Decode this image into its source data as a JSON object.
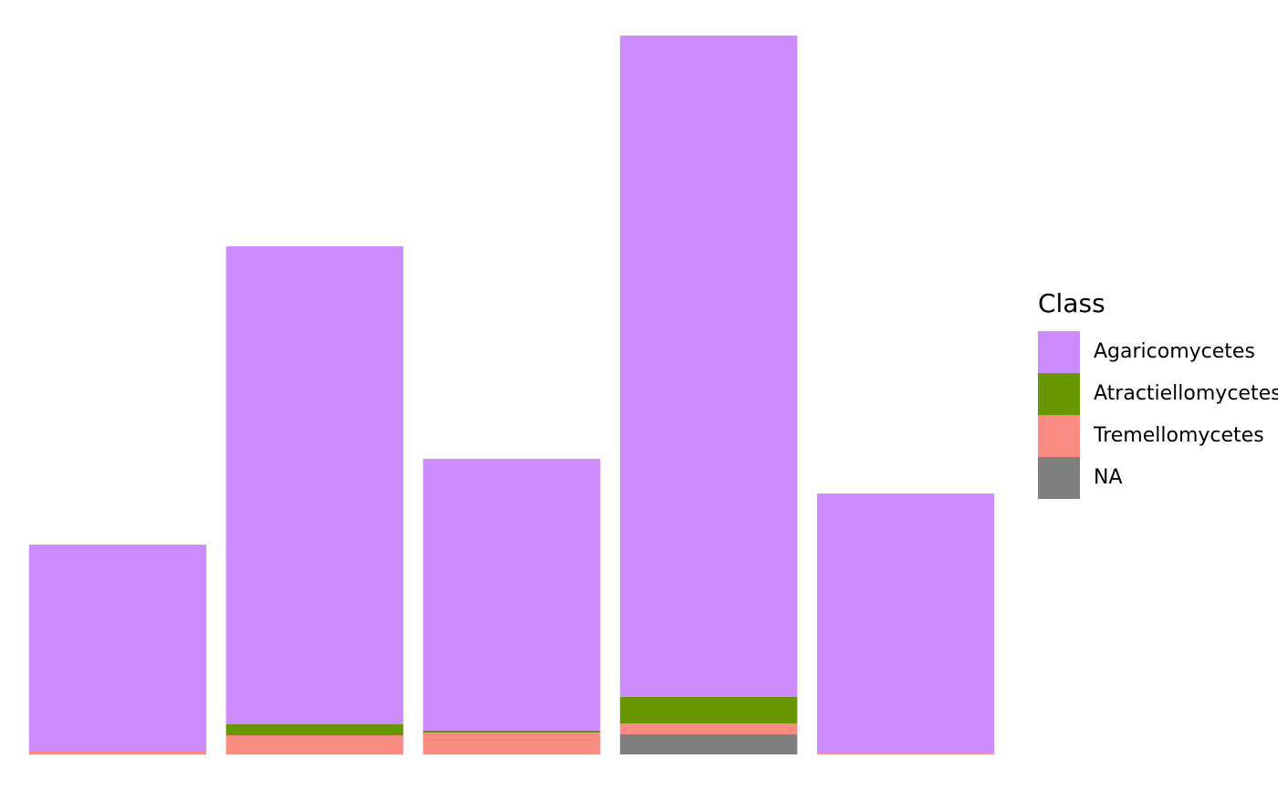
{
  "chart_data": {
    "type": "bar",
    "stacked": true,
    "categories": [
      null,
      null,
      null,
      null,
      null
    ],
    "legend_title": "Class",
    "legend_position": "right",
    "series": [
      {
        "name": "Agaricomycetes",
        "color": "#cd8cfe",
        "values": [
          226,
          524,
          298,
          725,
          285
        ]
      },
      {
        "name": "Atractiellomycetes",
        "color": "#679600",
        "values": [
          0,
          12,
          2,
          29,
          0
        ]
      },
      {
        "name": "Tremellomycetes",
        "color": "#f98b82",
        "values": [
          4,
          21,
          24,
          12,
          1
        ]
      },
      {
        "name": "NA",
        "color": "#7f7f7f",
        "values": [
          0,
          0,
          0,
          22,
          0
        ]
      }
    ]
  }
}
